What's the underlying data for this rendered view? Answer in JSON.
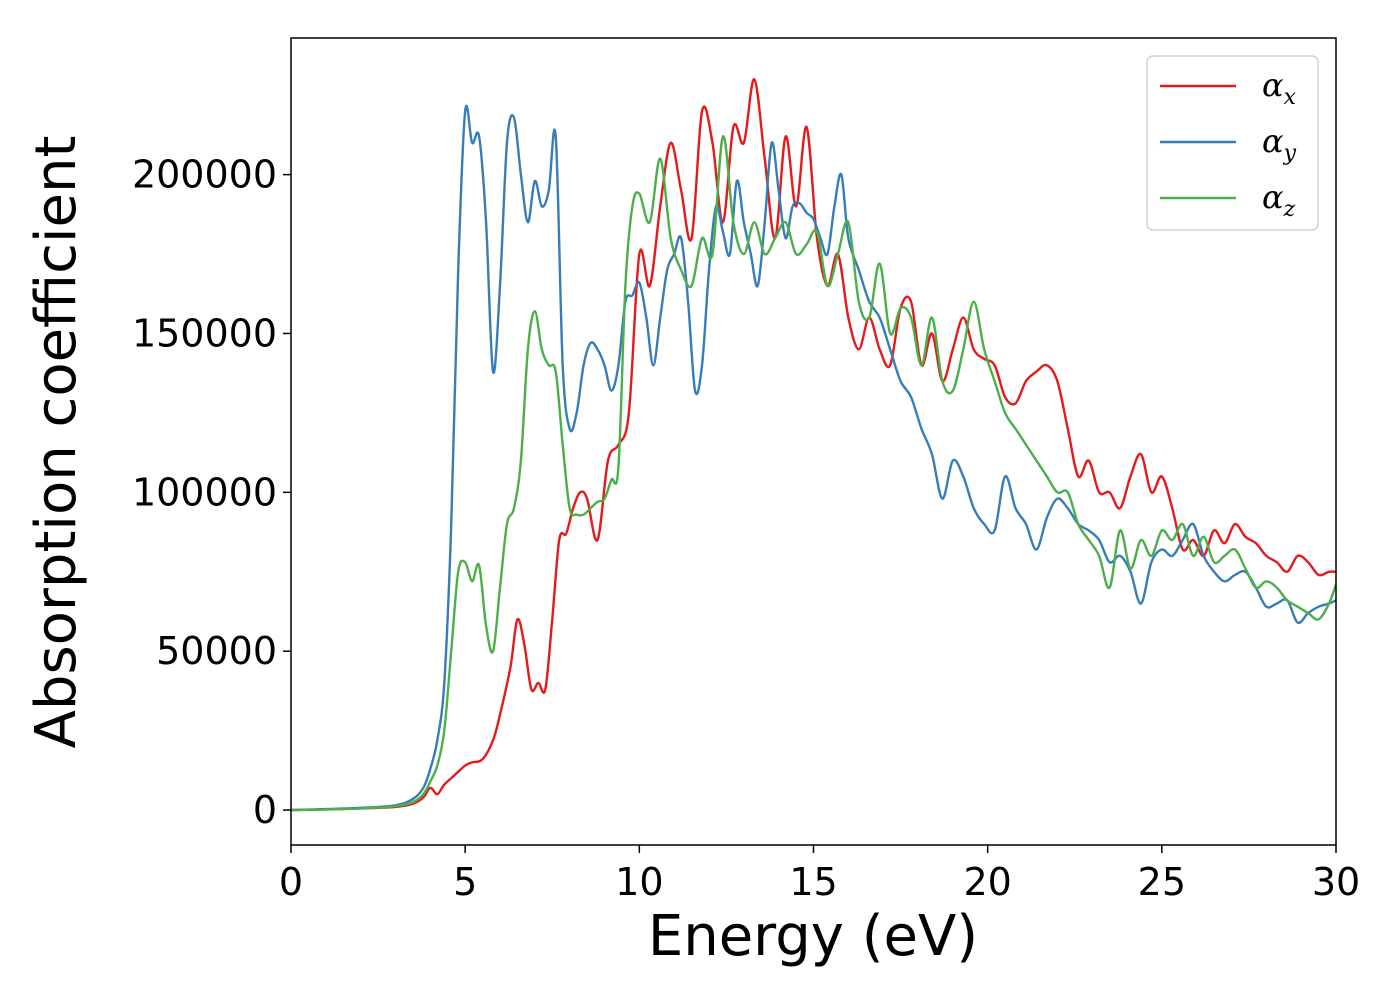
{
  "chart_data": {
    "type": "line",
    "title": "",
    "xlabel": "Energy (eV)",
    "ylabel": "Absorption coefficient",
    "xlim": [
      0,
      30
    ],
    "ylim": [
      -11000,
      243000
    ],
    "xticks": [
      0,
      5,
      10,
      15,
      20,
      25,
      30
    ],
    "xtick_labels": [
      "0",
      "5",
      "10",
      "15",
      "20",
      "25",
      "30"
    ],
    "yticks": [
      0,
      50000,
      100000,
      150000,
      200000
    ],
    "ytick_labels": [
      "0",
      "50000",
      "100000",
      "150000",
      "200000"
    ],
    "grid": false,
    "legend_position": "top-right",
    "series": [
      {
        "name": "αx",
        "symbol": "α",
        "subscript": "x",
        "color": "#e41a1c",
        "x": [
          0,
          1,
          2,
          3,
          3.5,
          3.8,
          4.0,
          4.2,
          4.4,
          4.7,
          5.0,
          5.2,
          5.5,
          5.8,
          6.0,
          6.3,
          6.5,
          6.7,
          6.9,
          7.1,
          7.3,
          7.5,
          7.7,
          7.9,
          8.1,
          8.3,
          8.5,
          8.8,
          9.1,
          9.4,
          9.7,
          10.0,
          10.3,
          10.6,
          10.9,
          11.2,
          11.5,
          11.8,
          12.1,
          12.4,
          12.7,
          13.0,
          13.3,
          13.6,
          13.9,
          14.2,
          14.5,
          14.8,
          15.1,
          15.4,
          15.7,
          16.0,
          16.3,
          16.6,
          16.9,
          17.2,
          17.5,
          17.8,
          18.1,
          18.4,
          18.7,
          19.0,
          19.3,
          19.6,
          19.9,
          20.2,
          20.5,
          20.8,
          21.1,
          21.4,
          21.7,
          22.0,
          22.3,
          22.6,
          22.9,
          23.2,
          23.5,
          23.8,
          24.1,
          24.4,
          24.7,
          25.0,
          25.3,
          25.6,
          25.9,
          26.2,
          26.5,
          26.8,
          27.1,
          27.4,
          27.7,
          28.0,
          28.3,
          28.6,
          28.9,
          29.2,
          29.5,
          29.8,
          30.0
        ],
        "y": [
          0,
          200,
          500,
          1000,
          2000,
          4000,
          7000,
          5000,
          8000,
          11000,
          14000,
          15000,
          16000,
          22000,
          30000,
          45000,
          60000,
          52000,
          38000,
          40000,
          38000,
          60000,
          85000,
          87000,
          95000,
          100000,
          98000,
          85000,
          110000,
          115000,
          125000,
          175000,
          165000,
          190000,
          210000,
          195000,
          180000,
          220000,
          210000,
          185000,
          215000,
          210000,
          230000,
          205000,
          180000,
          212000,
          190000,
          215000,
          180000,
          165000,
          175000,
          155000,
          145000,
          155000,
          145000,
          140000,
          158000,
          160000,
          140000,
          150000,
          135000,
          145000,
          155000,
          145000,
          142000,
          140000,
          130000,
          128000,
          135000,
          138000,
          140000,
          135000,
          120000,
          105000,
          110000,
          100000,
          100000,
          95000,
          105000,
          112000,
          100000,
          105000,
          95000,
          82000,
          85000,
          80000,
          88000,
          84000,
          90000,
          86000,
          84000,
          80000,
          78000,
          75000,
          80000,
          78000,
          74000,
          75000,
          75000
        ]
      },
      {
        "name": "αy",
        "symbol": "α",
        "subscript": "y",
        "color": "#377eb8",
        "x": [
          0,
          1,
          2,
          3,
          3.5,
          3.8,
          4.0,
          4.2,
          4.4,
          4.6,
          4.8,
          5.0,
          5.2,
          5.4,
          5.6,
          5.8,
          6.0,
          6.2,
          6.4,
          6.6,
          6.8,
          7.0,
          7.2,
          7.4,
          7.6,
          7.8,
          8.0,
          8.2,
          8.4,
          8.6,
          8.8,
          9.0,
          9.2,
          9.4,
          9.6,
          9.8,
          10.0,
          10.2,
          10.4,
          10.6,
          10.8,
          11.0,
          11.2,
          11.4,
          11.6,
          11.8,
          12.0,
          12.2,
          12.4,
          12.6,
          12.8,
          13.0,
          13.2,
          13.4,
          13.6,
          13.8,
          14.0,
          14.2,
          14.4,
          14.6,
          14.8,
          15.0,
          15.2,
          15.4,
          15.6,
          15.8,
          16.0,
          16.3,
          16.6,
          16.9,
          17.2,
          17.5,
          17.8,
          18.1,
          18.4,
          18.7,
          19.0,
          19.3,
          19.6,
          19.9,
          20.2,
          20.5,
          20.8,
          21.1,
          21.4,
          21.7,
          22.0,
          22.3,
          22.6,
          22.9,
          23.2,
          23.5,
          23.8,
          24.1,
          24.4,
          24.7,
          25.0,
          25.3,
          25.6,
          25.9,
          26.2,
          26.5,
          26.8,
          27.1,
          27.4,
          27.7,
          28.0,
          28.3,
          28.6,
          28.9,
          29.2,
          29.5,
          29.8,
          30.0
        ],
        "y": [
          0,
          300,
          700,
          1500,
          3500,
          7000,
          13000,
          22000,
          40000,
          90000,
          170000,
          220000,
          210000,
          212000,
          185000,
          138000,
          165000,
          210000,
          218000,
          200000,
          185000,
          198000,
          190000,
          195000,
          212000,
          140000,
          120000,
          125000,
          140000,
          147000,
          145000,
          140000,
          132000,
          140000,
          160000,
          162000,
          166000,
          155000,
          140000,
          155000,
          170000,
          175000,
          180000,
          160000,
          132000,
          140000,
          170000,
          190000,
          182000,
          175000,
          198000,
          185000,
          175000,
          165000,
          185000,
          210000,
          195000,
          180000,
          190000,
          191000,
          188000,
          186000,
          180000,
          175000,
          190000,
          200000,
          180000,
          170000,
          160000,
          155000,
          145000,
          135000,
          130000,
          120000,
          112000,
          98000,
          110000,
          105000,
          95000,
          90000,
          88000,
          105000,
          95000,
          90000,
          82000,
          92000,
          98000,
          95000,
          90000,
          88000,
          85000,
          78000,
          80000,
          75000,
          65000,
          78000,
          82000,
          80000,
          85000,
          90000,
          80000,
          75000,
          72000,
          74000,
          75000,
          70000,
          64000,
          65000,
          66000,
          59000,
          62000,
          64000,
          65000,
          66000
        ]
      },
      {
        "name": "αz",
        "symbol": "α",
        "subscript": "z",
        "color": "#4daf4a",
        "x": [
          0,
          1,
          2,
          3,
          3.5,
          3.8,
          4.0,
          4.2,
          4.4,
          4.6,
          4.8,
          5.0,
          5.2,
          5.4,
          5.6,
          5.8,
          6.0,
          6.2,
          6.4,
          6.6,
          6.8,
          7.0,
          7.2,
          7.4,
          7.6,
          7.8,
          8.0,
          8.2,
          8.4,
          8.6,
          8.8,
          9.0,
          9.2,
          9.4,
          9.6,
          9.8,
          10.0,
          10.3,
          10.6,
          10.9,
          11.2,
          11.5,
          11.8,
          12.1,
          12.4,
          12.7,
          13.0,
          13.3,
          13.6,
          13.9,
          14.2,
          14.5,
          14.8,
          15.1,
          15.4,
          15.7,
          16.0,
          16.3,
          16.6,
          16.9,
          17.2,
          17.5,
          17.8,
          18.1,
          18.4,
          18.7,
          19.0,
          19.3,
          19.6,
          19.9,
          20.2,
          20.5,
          20.8,
          21.1,
          21.4,
          21.7,
          22.0,
          22.3,
          22.6,
          22.9,
          23.2,
          23.5,
          23.8,
          24.1,
          24.4,
          24.7,
          25.0,
          25.3,
          25.6,
          25.9,
          26.2,
          26.5,
          26.8,
          27.1,
          27.4,
          27.7,
          28.0,
          28.3,
          28.6,
          28.9,
          29.2,
          29.5,
          29.8,
          30.0
        ],
        "y": [
          0,
          200,
          500,
          1200,
          2500,
          5000,
          9000,
          14000,
          25000,
          50000,
          75000,
          78000,
          72000,
          77000,
          58000,
          50000,
          70000,
          90000,
          95000,
          110000,
          145000,
          157000,
          145000,
          140000,
          138000,
          115000,
          95000,
          93000,
          93000,
          95000,
          97000,
          98000,
          104000,
          108000,
          165000,
          190000,
          194000,
          185000,
          205000,
          180000,
          170000,
          165000,
          180000,
          175000,
          212000,
          185000,
          175000,
          185000,
          175000,
          180000,
          185000,
          175000,
          178000,
          182000,
          165000,
          175000,
          185000,
          160000,
          155000,
          172000,
          150000,
          158000,
          155000,
          140000,
          155000,
          135000,
          132000,
          145000,
          160000,
          145000,
          135000,
          125000,
          120000,
          115000,
          110000,
          105000,
          100000,
          100000,
          90000,
          85000,
          80000,
          70000,
          88000,
          76000,
          85000,
          80000,
          88000,
          85000,
          90000,
          80000,
          86000,
          78000,
          80000,
          82000,
          76000,
          70000,
          72000,
          70000,
          66000,
          64000,
          62000,
          60000,
          65000,
          71000
        ]
      }
    ]
  }
}
